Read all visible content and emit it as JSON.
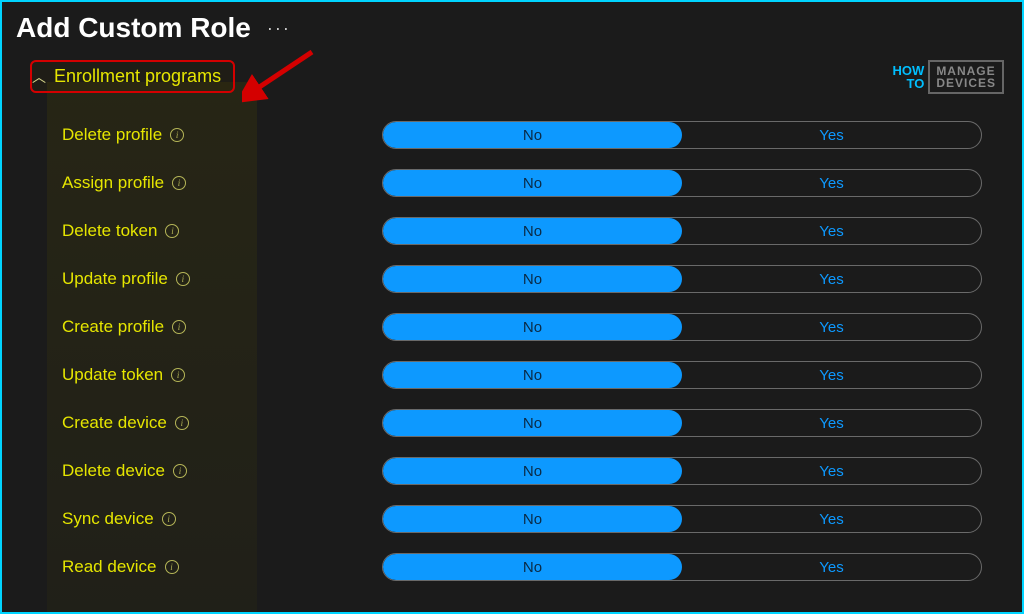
{
  "header": {
    "title": "Add Custom Role",
    "more": "···"
  },
  "logo": {
    "left_top": "HOW",
    "left_bottom": "TO",
    "right_top": "MANAGE",
    "right_bottom": "DEVICES"
  },
  "section": {
    "title": "Enrollment programs"
  },
  "toggle_options": {
    "no": "No",
    "yes": "Yes"
  },
  "permissions": [
    {
      "label": "Delete profile",
      "value": "No"
    },
    {
      "label": "Assign profile",
      "value": "No"
    },
    {
      "label": "Delete token",
      "value": "No"
    },
    {
      "label": "Update profile",
      "value": "No"
    },
    {
      "label": "Create profile",
      "value": "No"
    },
    {
      "label": "Update token",
      "value": "No"
    },
    {
      "label": "Create device",
      "value": "No"
    },
    {
      "label": "Delete device",
      "value": "No"
    },
    {
      "label": "Sync device",
      "value": "No"
    },
    {
      "label": "Read device",
      "value": "No"
    }
  ],
  "colors": {
    "accent_blue": "#0d99ff",
    "permission_yellow": "#e6e600",
    "highlight_red": "#d40000",
    "border_cyan": "#00d4ff"
  }
}
